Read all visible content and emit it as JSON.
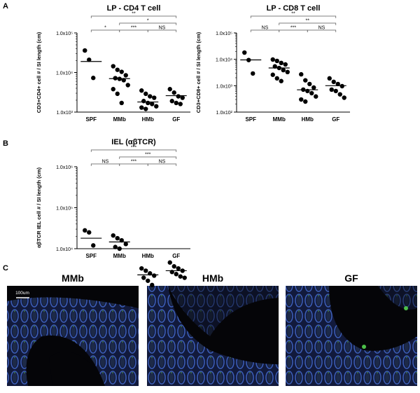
{
  "panel_labels": [
    "A",
    "B",
    "C"
  ],
  "chart_data": [
    {
      "type": "scatter",
      "title": "LP - CD4 T cell",
      "y_label": "CD3+CD4+ cell # / SI length (cm)",
      "categories": [
        "SPF",
        "MMb",
        "HMb",
        "GF"
      ],
      "log_y": true,
      "color": "#000000",
      "ylim": [
        1000,
        100000
      ],
      "yticks": [
        {
          "value": 1000,
          "label": "1.0x10³"
        },
        {
          "value": 10000,
          "label": "1.0x10⁴"
        },
        {
          "value": 100000,
          "label": "1.0x10⁵"
        }
      ],
      "points": [
        [
          36000,
          21000,
          7300
        ],
        [
          14400,
          11700,
          10400,
          8500,
          7200,
          6900,
          6400,
          4800,
          3800,
          2900,
          1700
        ],
        [
          3500,
          2900,
          2500,
          2300,
          1900,
          1700,
          1600,
          1400,
          1300,
          1200
        ],
        [
          3800,
          3100,
          2500,
          2300,
          1900,
          1700,
          1600
        ]
      ],
      "means": [
        19000,
        7000,
        1800,
        2600
      ],
      "comparisons": [
        {
          "between": [
            "SPF",
            "GF"
          ],
          "label": "**"
        },
        {
          "between": [
            "MMb",
            "GF"
          ],
          "label": "*"
        },
        {
          "between": [
            "SPF",
            "MMb"
          ],
          "label": "*"
        },
        {
          "between": [
            "MMb",
            "HMb"
          ],
          "label": "***"
        },
        {
          "between": [
            "HMb",
            "GF"
          ],
          "label": "NS"
        }
      ]
    },
    {
      "type": "scatter",
      "title": "LP - CD8 T cell",
      "y_label": "CD3+CD8+ cell # / SI length (cm)",
      "categories": [
        "SPF",
        "MMb",
        "HMb",
        "GF"
      ],
      "log_y": true,
      "color": "#000000",
      "ylim": [
        100,
        100000
      ],
      "yticks": [
        {
          "value": 100,
          "label": "1.0x10²"
        },
        {
          "value": 1000,
          "label": "1.0x10³"
        },
        {
          "value": 10000,
          "label": "1.0x10⁴"
        },
        {
          "value": 100000,
          "label": "1.0x10⁵"
        }
      ],
      "points": [
        [
          18000,
          9400,
          2900
        ],
        [
          9800,
          8700,
          7300,
          6400,
          5400,
          4700,
          3900,
          3300,
          2600,
          1900,
          1500
        ],
        [
          2700,
          1600,
          1160,
          850,
          710,
          630,
          520,
          390,
          300,
          250
        ],
        [
          1900,
          1400,
          1160,
          960,
          710,
          630,
          470,
          350
        ]
      ],
      "means": [
        9500,
        4700,
        700,
        1000
      ],
      "comparisons": [
        {
          "between": [
            "SPF",
            "GF"
          ],
          "label": "**"
        },
        {
          "between": [
            "MMb",
            "GF"
          ],
          "label": "**"
        },
        {
          "between": [
            "SPF",
            "MMb"
          ],
          "label": "NS"
        },
        {
          "between": [
            "MMb",
            "HMb"
          ],
          "label": "***"
        },
        {
          "between": [
            "HMb",
            "GF"
          ],
          "label": "NS"
        }
      ]
    },
    {
      "type": "scatter",
      "title": "IEL (αβTCR)",
      "y_label": "αβTCR IEL cell # / SI length (cm)",
      "categories": [
        "SPF",
        "MMb",
        "HMb",
        "GF"
      ],
      "log_y": true,
      "color": "#000000",
      "ylim": [
        10000,
        1000000
      ],
      "yticks": [
        {
          "value": 10000,
          "label": "1.0x10⁴"
        },
        {
          "value": 100000,
          "label": "1.0x10⁵"
        },
        {
          "value": 1000000,
          "label": "1.0x10⁶"
        }
      ],
      "points": [
        [
          28000,
          25000,
          12000
        ],
        [
          21000,
          18000,
          16000,
          13000,
          11000,
          10000
        ],
        [
          3300,
          2900,
          2500,
          2200,
          1950,
          1650,
          1300
        ],
        [
          4600,
          3700,
          3300,
          2900,
          2700,
          2400,
          2100,
          1950
        ]
      ],
      "means": [
        18000,
        14600,
        2300,
        2900
      ],
      "comparisons": [
        {
          "between": [
            "SPF",
            "GF"
          ],
          "label": "***"
        },
        {
          "between": [
            "MMb",
            "GF"
          ],
          "label": "***"
        },
        {
          "between": [
            "SPF",
            "MMb"
          ],
          "label": "NS"
        },
        {
          "between": [
            "MMb",
            "HMb"
          ],
          "label": "***"
        },
        {
          "between": [
            "HMb",
            "GF"
          ],
          "label": "NS"
        }
      ]
    }
  ],
  "images": [
    {
      "label": "MMb",
      "scale_bar": "100um"
    },
    {
      "label": "HMb"
    },
    {
      "label": "GF"
    }
  ]
}
